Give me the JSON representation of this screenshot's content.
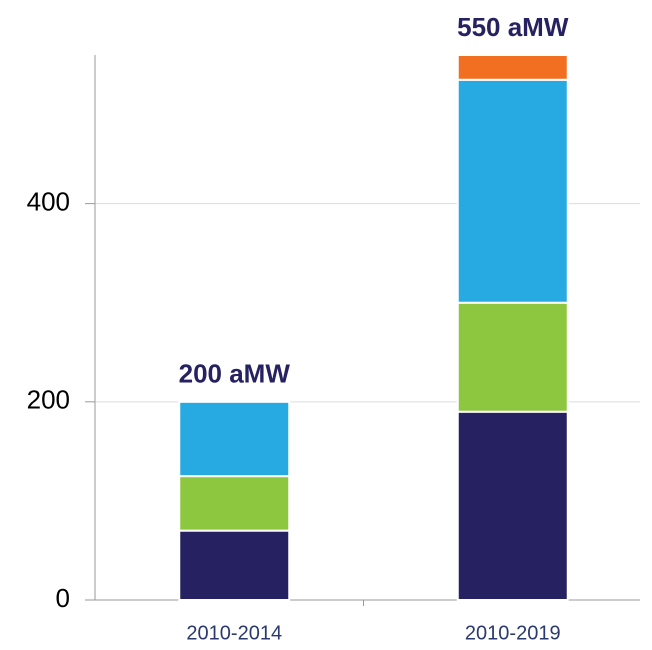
{
  "chart_data": {
    "type": "stacked_bar",
    "categories": [
      "2010-2014",
      "2010-2019"
    ],
    "series": [
      {
        "color": "#262261",
        "values": [
          70,
          190
        ]
      },
      {
        "color": "#8dc63f",
        "values": [
          55,
          110
        ]
      },
      {
        "color": "#27aae1",
        "values": [
          75,
          225
        ]
      },
      {
        "color": "#f26f21",
        "values": [
          0,
          25
        ]
      }
    ],
    "total_labels": [
      "200 aMW",
      "550 aMW"
    ],
    "ylim": [
      0,
      550
    ],
    "yticks": [
      0,
      200,
      400
    ],
    "grid": true
  }
}
